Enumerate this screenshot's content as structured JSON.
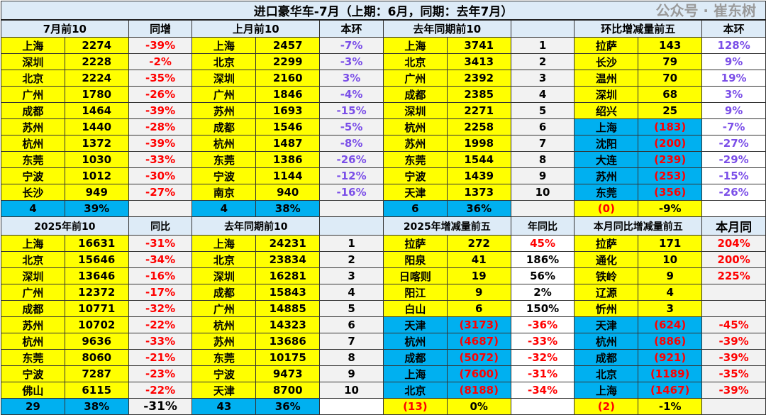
{
  "title": "进口豪华车-7月（上期：6月，同期：去年7月）",
  "top": {
    "headers": [
      "7月前10",
      "同增",
      "上月前10",
      "本环",
      "去年同期前10",
      "",
      "环比增减量前五",
      "本环"
    ],
    "rows": [
      [
        "上海",
        "2274",
        "-39%",
        "上海",
        "2457",
        "-7%",
        "上海",
        "3741",
        "1",
        "拉萨",
        "143",
        "128%"
      ],
      [
        "深圳",
        "2228",
        "-2%",
        "北京",
        "2299",
        "-3%",
        "北京",
        "3413",
        "2",
        "长沙",
        "79",
        "9%"
      ],
      [
        "北京",
        "2224",
        "-35%",
        "深圳",
        "2160",
        "3%",
        "广州",
        "2392",
        "3",
        "温州",
        "70",
        "19%"
      ],
      [
        "广州",
        "1780",
        "-26%",
        "广州",
        "1846",
        "-4%",
        "成都",
        "2385",
        "4",
        "深圳",
        "68",
        "3%"
      ],
      [
        "成都",
        "1464",
        "-39%",
        "苏州",
        "1693",
        "-15%",
        "深圳",
        "2271",
        "5",
        "绍兴",
        "25",
        "9%"
      ],
      [
        "苏州",
        "1440",
        "-28%",
        "成都",
        "1546",
        "-5%",
        "杭州",
        "2258",
        "6",
        "上海",
        "(183)",
        "-7%"
      ],
      [
        "杭州",
        "1372",
        "-39%",
        "杭州",
        "1487",
        "-8%",
        "苏州",
        "1998",
        "7",
        "沈阳",
        "(200)",
        "-27%"
      ],
      [
        "东莞",
        "1030",
        "-33%",
        "东莞",
        "1386",
        "-26%",
        "东莞",
        "1544",
        "8",
        "大连",
        "(239)",
        "-29%"
      ],
      [
        "宁波",
        "1012",
        "-30%",
        "宁波",
        "1144",
        "-12%",
        "宁波",
        "1439",
        "9",
        "苏州",
        "(253)",
        "-15%"
      ],
      [
        "长沙",
        "949",
        "-27%",
        "南京",
        "940",
        "-16%",
        "天津",
        "1373",
        "10",
        "东莞",
        "(356)",
        "-26%"
      ]
    ],
    "summary": [
      "4",
      "39%",
      "",
      "4",
      "38%",
      "",
      "6",
      "36%",
      "",
      "(0)",
      "-9%",
      ""
    ]
  },
  "bottom": {
    "headers": [
      "2025年前10",
      "同比",
      "去年同期前10",
      "",
      "2025年增减量前五",
      "年同比",
      "本月同比增减量前五",
      "本月同"
    ],
    "rows": [
      [
        "上海",
        "16631",
        "-31%",
        "上海",
        "24231",
        "1",
        "拉萨",
        "272",
        "45%",
        "拉萨",
        "171",
        "204%"
      ],
      [
        "北京",
        "15646",
        "-34%",
        "北京",
        "23834",
        "2",
        "阳泉",
        "41",
        "186%",
        "通化",
        "10",
        "200%"
      ],
      [
        "深圳",
        "13646",
        "-16%",
        "深圳",
        "16281",
        "3",
        "日喀则",
        "19",
        "56%",
        "铁岭",
        "9",
        "225%"
      ],
      [
        "广州",
        "12372",
        "-17%",
        "成都",
        "15843",
        "4",
        "阳江",
        "9",
        "2%",
        "辽源",
        "4",
        ""
      ],
      [
        "成都",
        "10771",
        "-32%",
        "广州",
        "14885",
        "5",
        "白山",
        "6",
        "150%",
        "忻州",
        "3",
        ""
      ],
      [
        "苏州",
        "10702",
        "-22%",
        "杭州",
        "14323",
        "6",
        "天津",
        "(3173)",
        "-36%",
        "天津",
        "(624)",
        "-45%"
      ],
      [
        "杭州",
        "9636",
        "-33%",
        "苏州",
        "13686",
        "7",
        "杭州",
        "(4687)",
        "-33%",
        "杭州",
        "(886)",
        "-39%"
      ],
      [
        "东莞",
        "8060",
        "-21%",
        "东莞",
        "10175",
        "8",
        "成都",
        "(5072)",
        "-32%",
        "成都",
        "(921)",
        "-39%"
      ],
      [
        "宁波",
        "7287",
        "-23%",
        "宁波",
        "9473",
        "9",
        "上海",
        "(7600)",
        "-31%",
        "北京",
        "(1189)",
        "-35%"
      ],
      [
        "佛山",
        "6115",
        "-22%",
        "天津",
        "8700",
        "10",
        "北京",
        "(8188)",
        "-34%",
        "上海",
        "(1467)",
        "-39%"
      ]
    ],
    "summary": [
      "29",
      "38%",
      "-31%",
      "43",
      "36%",
      "",
      "(13)",
      "0%",
      "",
      "(2)",
      "-1%",
      ""
    ]
  },
  "watermark": "公众号 · 崔东树",
  "colors": {
    "yellow": "#ffff00",
    "blue": "#00b0f0",
    "gray": "#f2f2f2",
    "header": "#ddebf7",
    "red": "#ff0000",
    "purple": "#7b4fe8"
  }
}
